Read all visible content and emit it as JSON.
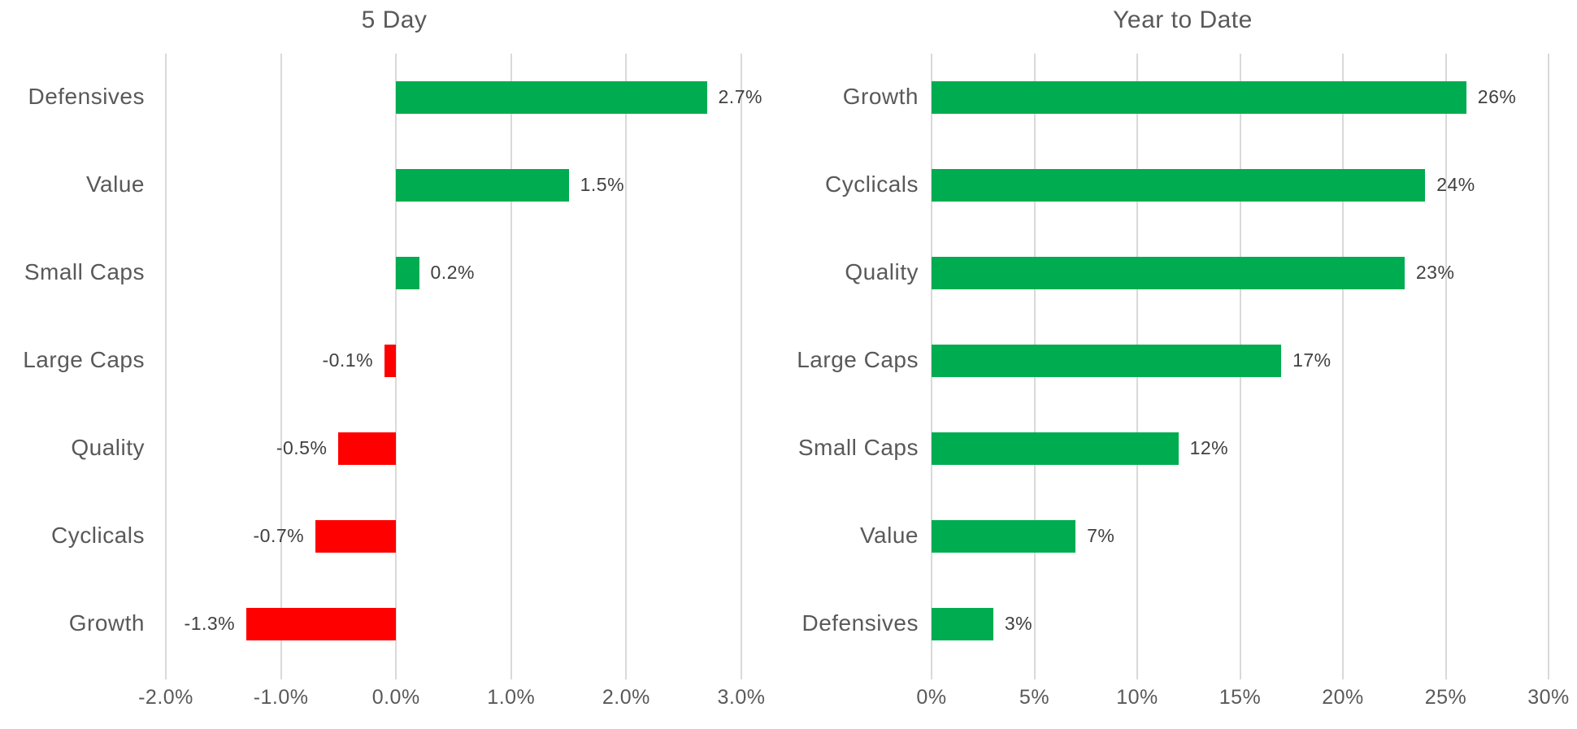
{
  "colors": {
    "positive_bar": "#00AC50",
    "negative_bar": "#FF0000",
    "gridline": "#D9D9D9",
    "category_text": "#595959",
    "data_label_text": "#404040",
    "title_text": "#595959"
  },
  "chart_data": [
    {
      "type": "bar",
      "orientation": "horizontal",
      "title": "5 Day",
      "categories": [
        "Defensives",
        "Value",
        "Small Caps",
        "Large Caps",
        "Quality",
        "Cyclicals",
        "Growth"
      ],
      "values": [
        2.7,
        1.5,
        0.2,
        -0.1,
        -0.5,
        -0.7,
        -1.3
      ],
      "data_labels": [
        "2.7%",
        "1.5%",
        "0.2%",
        "-0.1%",
        "-0.5%",
        "-0.7%",
        "-1.3%"
      ],
      "xlim": [
        -2,
        3
      ],
      "x_tick_values": [
        -2,
        -1,
        0,
        1,
        2,
        3
      ],
      "x_tick_labels": [
        "-2.0%",
        "-1.0%",
        "0.0%",
        "1.0%",
        "2.0%",
        "3.0%"
      ],
      "grid": true,
      "legend": "none",
      "positive_color": "#00AC50",
      "negative_color": "#FF0000"
    },
    {
      "type": "bar",
      "orientation": "horizontal",
      "title": "Year to Date",
      "categories": [
        "Growth",
        "Cyclicals",
        "Quality",
        "Large Caps",
        "Small Caps",
        "Value",
        "Defensives"
      ],
      "values": [
        26,
        24,
        23,
        17,
        12,
        7,
        3
      ],
      "data_labels": [
        "26%",
        "24%",
        "23%",
        "17%",
        "12%",
        "7%",
        "3%"
      ],
      "xlim": [
        0,
        30
      ],
      "x_tick_values": [
        0,
        5,
        10,
        15,
        20,
        25,
        30
      ],
      "x_tick_labels": [
        "0%",
        "5%",
        "10%",
        "15%",
        "20%",
        "25%",
        "30%"
      ],
      "grid": true,
      "legend": "none",
      "positive_color": "#00AC50",
      "negative_color": "#FF0000"
    }
  ]
}
